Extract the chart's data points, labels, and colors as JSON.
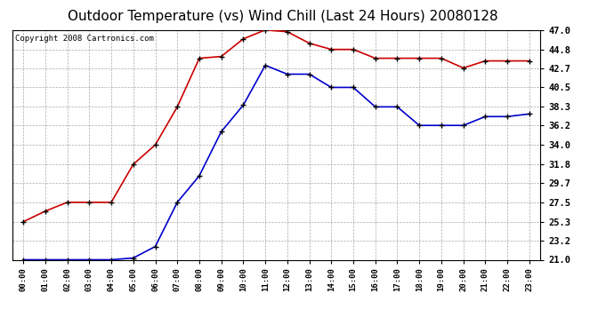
{
  "title": "Outdoor Temperature (vs) Wind Chill (Last 24 Hours) 20080128",
  "copyright": "Copyright 2008 Cartronics.com",
  "hours": [
    "00:00",
    "01:00",
    "02:00",
    "03:00",
    "04:00",
    "05:00",
    "06:00",
    "07:00",
    "08:00",
    "09:00",
    "10:00",
    "11:00",
    "12:00",
    "13:00",
    "14:00",
    "15:00",
    "16:00",
    "17:00",
    "18:00",
    "19:00",
    "20:00",
    "21:00",
    "22:00",
    "23:00"
  ],
  "temp": [
    25.3,
    26.5,
    27.5,
    27.5,
    27.5,
    31.8,
    34.0,
    38.3,
    43.8,
    44.0,
    46.0,
    47.0,
    46.8,
    45.5,
    44.8,
    44.8,
    43.8,
    43.8,
    43.8,
    43.8,
    42.7,
    43.5,
    43.5,
    43.5
  ],
  "windchill": [
    21.0,
    21.0,
    21.0,
    21.0,
    21.0,
    21.2,
    22.5,
    27.5,
    30.5,
    35.5,
    38.5,
    43.0,
    42.0,
    42.0,
    40.5,
    40.5,
    38.3,
    38.3,
    36.2,
    36.2,
    36.2,
    37.2,
    37.2,
    37.5
  ],
  "ylim": [
    21.0,
    47.0
  ],
  "yticks": [
    21.0,
    23.2,
    25.3,
    27.5,
    29.7,
    31.8,
    34.0,
    36.2,
    38.3,
    40.5,
    42.7,
    44.8,
    47.0
  ],
  "temp_color": "#cc0000",
  "windchill_color": "#0000cc",
  "grid_color": "#aaaaaa",
  "plot_bg": "#ffffff",
  "title_fontsize": 11,
  "copyright_fontsize": 6.5
}
